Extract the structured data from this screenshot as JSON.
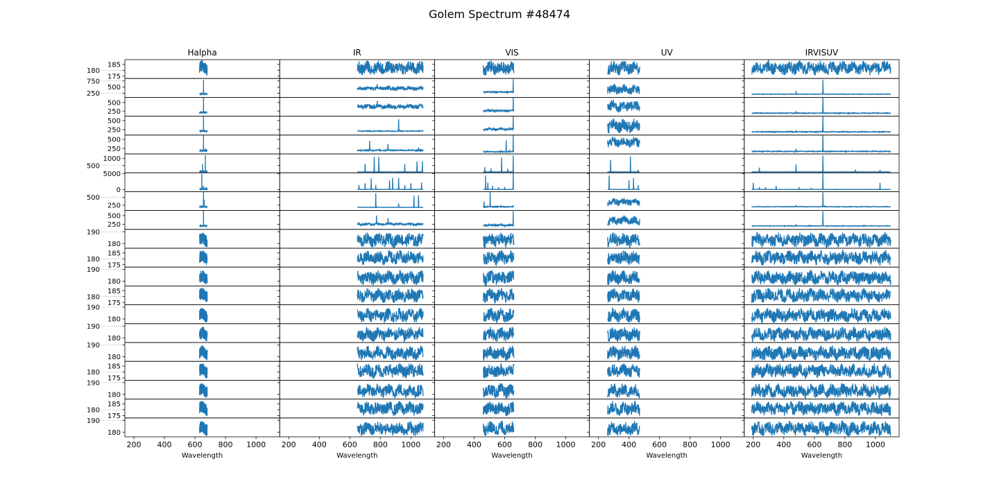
{
  "chart_data": {
    "type": "line",
    "title": "Golem Spectrum #48474",
    "xlabel": "Wavelength",
    "xlim": [
      141,
      1155
    ],
    "xticks": [
      200,
      400,
      600,
      800,
      1000
    ],
    "line_color": "#1f77b4",
    "grid": false,
    "columns": [
      {
        "name": "Halpha",
        "xrange": [
          630,
          680
        ]
      },
      {
        "name": "IR",
        "xrange": [
          650,
          1080
        ]
      },
      {
        "name": "VIS",
        "xrange": [
          460,
          660
        ]
      },
      {
        "name": "UV",
        "xrange": [
          260,
          470
        ]
      },
      {
        "name": "IRVISUV",
        "xrange": [
          190,
          1100
        ]
      }
    ],
    "rows": [
      {
        "ylim": [
          173,
          189
        ],
        "yticks": [
          175,
          180,
          185
        ],
        "panels": [
          [
            182,
            5,
            []
          ],
          [
            182,
            5,
            []
          ],
          [
            182,
            5,
            []
          ],
          [
            182,
            5,
            []
          ],
          [
            182,
            5,
            []
          ]
        ]
      },
      {
        "ylim": [
          80,
          850
        ],
        "yticks": [
          250,
          500,
          750
        ],
        "panels": [
          [
            220,
            5,
            [
              [
                656,
                800
              ]
            ]
          ],
          [
            450,
            70,
            [
              [
                780,
                650
              ]
            ]
          ],
          [
            300,
            20,
            [
              [
                656,
                800
              ]
            ]
          ],
          [
            400,
            180,
            []
          ],
          [
            210,
            10,
            [
              [
                656,
                800
              ],
              [
                480,
                330
              ]
            ]
          ]
        ]
      },
      {
        "ylim": [
          100,
          650
        ],
        "yticks": [
          250,
          500
        ],
        "panels": [
          [
            210,
            5,
            [
              [
                656,
                650
              ]
            ]
          ],
          [
            380,
            60,
            [
              [
                780,
                520
              ]
            ]
          ],
          [
            260,
            25,
            [
              [
                656,
                650
              ]
            ]
          ],
          [
            400,
            150,
            []
          ],
          [
            190,
            10,
            [
              [
                656,
                650
              ],
              [
                480,
                260
              ]
            ]
          ]
        ]
      },
      {
        "ylim": [
          100,
          620
        ],
        "yticks": [
          250,
          500
        ],
        "panels": [
          [
            210,
            5,
            [
              [
                656,
                620
              ]
            ]
          ],
          [
            210,
            10,
            [
              [
                920,
                540
              ]
            ]
          ],
          [
            260,
            30,
            [
              [
                656,
                620
              ]
            ]
          ],
          [
            350,
            160,
            []
          ],
          [
            190,
            10,
            [
              [
                656,
                620
              ],
              [
                480,
                230
              ]
            ]
          ]
        ]
      },
      {
        "ylim": [
          100,
          620
        ],
        "yticks": [
          250,
          500
        ],
        "panels": [
          [
            190,
            5,
            [
              [
                656,
                620
              ],
              [
                668,
                250
              ]
            ]
          ],
          [
            200,
            15,
            [
              [
                730,
                450
              ],
              [
                850,
                360
              ],
              [
                1050,
                270
              ]
            ]
          ],
          [
            160,
            10,
            [
              [
                610,
                480
              ],
              [
                656,
                620
              ],
              [
                480,
                200
              ],
              [
                630,
                220
              ]
            ]
          ],
          [
            420,
            120,
            []
          ],
          [
            170,
            10,
            [
              [
                656,
                620
              ],
              [
                480,
                240
              ]
            ]
          ]
        ]
      },
      {
        "ylim": [
          0,
          1300
        ],
        "yticks": [
          500,
          1000
        ],
        "panels": [
          [
            80,
            10,
            [
              [
                650,
                600
              ],
              [
                668,
                1200
              ]
            ]
          ],
          [
            60,
            10,
            [
              [
                700,
                620
              ],
              [
                760,
                1100
              ],
              [
                790,
                1100
              ],
              [
                960,
                610
              ],
              [
                1040,
                800
              ],
              [
                1075,
                800
              ]
            ]
          ],
          [
            60,
            10,
            [
              [
                580,
                1050
              ],
              [
                656,
                1200
              ],
              [
                470,
                400
              ],
              [
                510,
                300
              ],
              [
                620,
                300
              ]
            ]
          ],
          [
            60,
            10,
            [
              [
                280,
                900
              ],
              [
                410,
                1150
              ],
              [
                460,
                200
              ]
            ]
          ],
          [
            60,
            10,
            [
              [
                240,
                350
              ],
              [
                480,
                560
              ],
              [
                656,
                1200
              ],
              [
                870,
                220
              ],
              [
                1030,
                200
              ]
            ]
          ]
        ]
      },
      {
        "ylim": [
          -600,
          5300
        ],
        "yticks": [
          0,
          5000
        ],
        "panels": [
          [
            200,
            50,
            [
              [
                645,
                5000
              ],
              [
                655,
                1200
              ],
              [
                675,
                800
              ]
            ]
          ],
          [
            100,
            40,
            [
              [
                660,
                1400
              ],
              [
                700,
                2000
              ],
              [
                740,
                3600
              ],
              [
                770,
                1500
              ],
              [
                860,
                2900
              ],
              [
                880,
                3600
              ],
              [
                920,
                3700
              ],
              [
                960,
                1500
              ],
              [
                1000,
                2000
              ],
              [
                1070,
                2200
              ]
            ]
          ],
          [
            100,
            40,
            [
              [
                475,
                4400
              ],
              [
                490,
                2200
              ],
              [
                520,
                1200
              ],
              [
                560,
                800
              ],
              [
                600,
                900
              ],
              [
                656,
                5200
              ]
            ]
          ],
          [
            100,
            40,
            [
              [
                270,
                4500
              ],
              [
                400,
                3000
              ],
              [
                430,
                3600
              ],
              [
                460,
                1500
              ]
            ]
          ],
          [
            100,
            40,
            [
              [
                200,
                2200
              ],
              [
                240,
                800
              ],
              [
                280,
                800
              ],
              [
                350,
                1200
              ],
              [
                500,
                800
              ],
              [
                580,
                600
              ],
              [
                656,
                5200
              ],
              [
                1030,
                2200
              ]
            ]
          ]
        ]
      },
      {
        "ylim": [
          80,
          680
        ],
        "yticks": [
          250,
          500
        ],
        "panels": [
          [
            200,
            5,
            [
              [
                656,
                680
              ],
              [
                660,
                430
              ]
            ]
          ],
          [
            180,
            5,
            [
              [
                770,
                620
              ],
              [
                920,
                300
              ],
              [
                1020,
                560
              ],
              [
                1050,
                560
              ]
            ]
          ],
          [
            200,
            15,
            [
              [
                465,
                370
              ],
              [
                505,
                660
              ]
            ]
          ],
          [
            350,
            100,
            []
          ],
          [
            200,
            8,
            [
              [
                656,
                660
              ],
              [
                480,
                260
              ],
              [
                670,
                250
              ]
            ]
          ]
        ]
      },
      {
        "ylim": [
          100,
          650
        ],
        "yticks": [
          250,
          500
        ],
        "panels": [
          [
            200,
            5,
            [
              [
                656,
                640
              ]
            ]
          ],
          [
            250,
            30,
            [
              [
                775,
                520
              ],
              [
                850,
                420
              ]
            ]
          ],
          [
            220,
            25,
            [
              [
                656,
                620
              ]
            ]
          ],
          [
            350,
            110,
            []
          ],
          [
            200,
            8,
            [
              [
                656,
                620
              ],
              [
                480,
                240
              ]
            ]
          ]
        ]
      },
      {
        "ylim": [
          176,
          192
        ],
        "yticks": [
          180,
          190
        ],
        "panels": [
          [
            183,
            5,
            []
          ],
          [
            183,
            5,
            []
          ],
          [
            183,
            5,
            []
          ],
          [
            183,
            5,
            []
          ],
          [
            183,
            5,
            []
          ]
        ]
      },
      {
        "ylim": [
          173,
          189
        ],
        "yticks": [
          175,
          180,
          185
        ],
        "panels": [
          [
            181,
            5,
            []
          ],
          [
            181,
            5,
            []
          ],
          [
            181,
            5,
            []
          ],
          [
            181,
            5,
            []
          ],
          [
            181,
            5,
            []
          ]
        ]
      },
      {
        "ylim": [
          176,
          192
        ],
        "yticks": [
          180,
          190
        ],
        "panels": [
          [
            183,
            5,
            []
          ],
          [
            183,
            5,
            []
          ],
          [
            183,
            5,
            []
          ],
          [
            183,
            5,
            []
          ],
          [
            183,
            5,
            []
          ]
        ]
      },
      {
        "ylim": [
          173,
          189
        ],
        "yticks": [
          175,
          180,
          185
        ],
        "panels": [
          [
            181,
            5,
            []
          ],
          [
            181,
            5,
            []
          ],
          [
            181,
            5,
            []
          ],
          [
            181,
            5,
            []
          ],
          [
            181,
            5,
            []
          ]
        ]
      },
      {
        "ylim": [
          176,
          192
        ],
        "yticks": [
          180,
          190
        ],
        "panels": [
          [
            183,
            5,
            []
          ],
          [
            183,
            5,
            []
          ],
          [
            183,
            5,
            []
          ],
          [
            183,
            5,
            []
          ],
          [
            183,
            5,
            []
          ]
        ]
      },
      {
        "ylim": [
          176,
          192
        ],
        "yticks": [
          180,
          190
        ],
        "panels": [
          [
            183,
            5,
            []
          ],
          [
            183,
            5,
            []
          ],
          [
            183,
            5,
            []
          ],
          [
            183,
            5,
            []
          ],
          [
            183,
            5,
            []
          ]
        ]
      },
      {
        "ylim": [
          176,
          192
        ],
        "yticks": [
          180,
          190
        ],
        "panels": [
          [
            183,
            5,
            []
          ],
          [
            183,
            5,
            []
          ],
          [
            183,
            5,
            []
          ],
          [
            183,
            5,
            []
          ],
          [
            183,
            5,
            []
          ]
        ]
      },
      {
        "ylim": [
          173,
          189
        ],
        "yticks": [
          175,
          180,
          185
        ],
        "panels": [
          [
            181,
            5,
            []
          ],
          [
            181,
            5,
            []
          ],
          [
            181,
            5,
            []
          ],
          [
            181,
            5,
            []
          ],
          [
            181,
            5,
            []
          ]
        ]
      },
      {
        "ylim": [
          176,
          192
        ],
        "yticks": [
          180,
          190
        ],
        "panels": [
          [
            183,
            5,
            []
          ],
          [
            183,
            5,
            []
          ],
          [
            183,
            5,
            []
          ],
          [
            183,
            5,
            []
          ],
          [
            183,
            5,
            []
          ]
        ]
      },
      {
        "ylim": [
          173,
          189
        ],
        "yticks": [
          175,
          180,
          185
        ],
        "panels": [
          [
            181,
            5,
            []
          ],
          [
            181,
            5,
            []
          ],
          [
            181,
            5,
            []
          ],
          [
            181,
            5,
            []
          ],
          [
            181,
            5,
            []
          ]
        ]
      },
      {
        "ylim": [
          176,
          192
        ],
        "yticks": [
          180,
          190
        ],
        "panels": [
          [
            183,
            5,
            []
          ],
          [
            183,
            5,
            []
          ],
          [
            183,
            5,
            []
          ],
          [
            183,
            5,
            []
          ],
          [
            183,
            5,
            []
          ]
        ]
      }
    ]
  }
}
